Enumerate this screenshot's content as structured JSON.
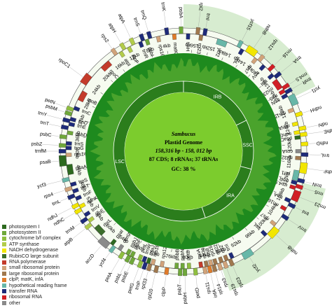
{
  "center": {
    "species": "Sambucus",
    "title": "Plastid Genome",
    "size": "158,316 bp - 158, 012 bp",
    "counts": "87 CDS; 8 rRNAs; 37 tRNAs",
    "gc": "GC: 38 %"
  },
  "regions": [
    {
      "label": "LSC",
      "start_kb": 0,
      "end_kb": 87
    },
    {
      "label": "IRA",
      "start_kb": 87,
      "end_kb": 112
    },
    {
      "label": "SSC",
      "start_kb": 112,
      "end_kb": 130
    },
    {
      "label": "IRB",
      "start_kb": 130,
      "end_kb": 158
    }
  ],
  "genome_length_kb": 158,
  "kb_ticks": [
    "4kb",
    "8kb",
    "12kb",
    "16kb",
    "20kb",
    "24kb",
    "28kb",
    "32kb",
    "36kb",
    "40kb",
    "44kb",
    "48kb",
    "52kb",
    "56kb",
    "60kb",
    "64kb",
    "68kb",
    "72kb",
    "76kb",
    "80kb",
    "84kb",
    "88kb",
    "92kb",
    "96kb",
    "100kb",
    "104kb",
    "108kb",
    "112kb",
    "116kb",
    "120kb",
    "124kb",
    "128kb",
    "132kb",
    "136kb",
    "140kb",
    "144kb",
    "148kb",
    "152kb",
    "156kb"
  ],
  "genes": [
    {
      "name": "psbA",
      "kb": 0.5,
      "cat": "photosystem II"
    },
    {
      "name": "matK",
      "kb": 2.0,
      "cat": "clpP, matK, infA"
    },
    {
      "name": "trnK",
      "kb": 3.5,
      "cat": "transfer RNA"
    },
    {
      "name": "rps16",
      "kb": 5.5,
      "cat": "small ribosomal protein"
    },
    {
      "name": "trnQ",
      "kb": 7.2,
      "cat": "transfer RNA"
    },
    {
      "name": "psbI",
      "kb": 8.0,
      "cat": "photosystem II"
    },
    {
      "name": "trnS",
      "kb": 8.8,
      "cat": "transfer RNA"
    },
    {
      "name": "trnR",
      "kb": 9.5,
      "cat": "transfer RNA"
    },
    {
      "name": "atpA",
      "kb": 11.0,
      "cat": "ATP synthase"
    },
    {
      "name": "atpF",
      "kb": 12.2,
      "cat": "ATP synthase"
    },
    {
      "name": "atpH",
      "kb": 13.2,
      "cat": "ATP synthase"
    },
    {
      "name": "atpI",
      "kb": 14.2,
      "cat": "ATP synthase"
    },
    {
      "name": "rps2",
      "kb": 15.3,
      "cat": "small ribosomal protein"
    },
    {
      "name": "rpoC2",
      "kb": 18.5,
      "cat": "RNA polymerase"
    },
    {
      "name": "rpoC1",
      "kb": 23.5,
      "cat": "RNA polymerase"
    },
    {
      "name": "rpoB",
      "kb": 27.0,
      "cat": "RNA polymerase"
    },
    {
      "name": "petN",
      "kb": 30.5,
      "cat": "cytochrome b/f complex"
    },
    {
      "name": "trnC",
      "kb": 30.0,
      "cat": "transfer RNA"
    },
    {
      "name": "psbM",
      "kb": 31.5,
      "cat": "photosystem II"
    },
    {
      "name": "trnD",
      "kb": 32.5,
      "cat": "transfer RNA"
    },
    {
      "name": "trnY",
      "kb": 33.0,
      "cat": "transfer RNA"
    },
    {
      "name": "trnE",
      "kb": 33.6,
      "cat": "transfer RNA"
    },
    {
      "name": "trnT",
      "kb": 34.5,
      "cat": "transfer RNA"
    },
    {
      "name": "psbD",
      "kb": 35.5,
      "cat": "photosystem II"
    },
    {
      "name": "psbC",
      "kb": 36.5,
      "cat": "photosystem II"
    },
    {
      "name": "trnS",
      "kb": 37.8,
      "cat": "transfer RNA"
    },
    {
      "name": "psbZ",
      "kb": 38.3,
      "cat": "photosystem II"
    },
    {
      "name": "trnG",
      "kb": 38.8,
      "cat": "transfer RNA"
    },
    {
      "name": "trnfM",
      "kb": 39.5,
      "cat": "transfer RNA"
    },
    {
      "name": "rps14",
      "kb": 40.3,
      "cat": "small ribosomal protein"
    },
    {
      "name": "psaB",
      "kb": 41.5,
      "cat": "photosystem I"
    },
    {
      "name": "psaA",
      "kb": 43.5,
      "cat": "photosystem I"
    },
    {
      "name": "ycf3",
      "kb": 45.5,
      "cat": "hypothetical reading frame"
    },
    {
      "name": "trnS",
      "kb": 46.8,
      "cat": "transfer RNA"
    },
    {
      "name": "rps4",
      "kb": 47.5,
      "cat": "small ribosomal protein"
    },
    {
      "name": "trnT",
      "kb": 48.3,
      "cat": "transfer RNA"
    },
    {
      "name": "trnL",
      "kb": 49.2,
      "cat": "transfer RNA"
    },
    {
      "name": "trnF",
      "kb": 50.0,
      "cat": "transfer RNA"
    },
    {
      "name": "ndhJ",
      "kb": 51.3,
      "cat": "NADH dehydrogenase"
    },
    {
      "name": "ndhK",
      "kb": 51.9,
      "cat": "NADH dehydrogenase"
    },
    {
      "name": "ndhC",
      "kb": 52.5,
      "cat": "NADH dehydrogenase"
    },
    {
      "name": "trnV",
      "kb": 54.0,
      "cat": "transfer RNA"
    },
    {
      "name": "trnM",
      "kb": 54.8,
      "cat": "transfer RNA"
    },
    {
      "name": "atpE",
      "kb": 55.5,
      "cat": "ATP synthase"
    },
    {
      "name": "atpB",
      "kb": 56.3,
      "cat": "ATP synthase"
    },
    {
      "name": "rbcL",
      "kb": 58.5,
      "cat": "RubisCO large subunit"
    },
    {
      "name": "accD",
      "kb": 61.0,
      "cat": "other"
    },
    {
      "name": "psaI",
      "kb": 62.5,
      "cat": "photosystem I"
    },
    {
      "name": "ycf4",
      "kb": 63.2,
      "cat": "hypothetical reading frame"
    },
    {
      "name": "cemA",
      "kb": 64.5,
      "cat": "other"
    },
    {
      "name": "petA",
      "kb": 65.5,
      "cat": "cytochrome b/f complex"
    },
    {
      "name": "psbJ",
      "kb": 66.5,
      "cat": "photosystem II"
    },
    {
      "name": "psbL",
      "kb": 67.0,
      "cat": "photosystem II"
    },
    {
      "name": "psbF",
      "kb": 67.5,
      "cat": "photosystem II"
    },
    {
      "name": "psbE",
      "kb": 68.0,
      "cat": "photosystem II"
    },
    {
      "name": "petL",
      "kb": 69.3,
      "cat": "cytochrome b/f complex"
    },
    {
      "name": "petG",
      "kb": 69.8,
      "cat": "cytochrome b/f complex"
    },
    {
      "name": "trnW",
      "kb": 70.3,
      "cat": "transfer RNA"
    },
    {
      "name": "trnP",
      "kb": 70.8,
      "cat": "transfer RNA"
    },
    {
      "name": "psaJ",
      "kb": 71.3,
      "cat": "photosystem I"
    },
    {
      "name": "rpl33",
      "kb": 71.8,
      "cat": "large ribosomal protein"
    },
    {
      "name": "rps18",
      "kb": 72.3,
      "cat": "small ribosomal protein"
    },
    {
      "name": "rpl20",
      "kb": 73.3,
      "cat": "large ribosomal protein"
    },
    {
      "name": "rps12",
      "kb": 74.3,
      "cat": "small ribosomal protein"
    },
    {
      "name": "clpP",
      "kb": 75.5,
      "cat": "clpP, matK, infA"
    },
    {
      "name": "psbB",
      "kb": 77.5,
      "cat": "photosystem II"
    },
    {
      "name": "psbT",
      "kb": 78.3,
      "cat": "photosystem II"
    },
    {
      "name": "psbN",
      "kb": 78.8,
      "cat": "photosystem II"
    },
    {
      "name": "psbH",
      "kb": 79.3,
      "cat": "photosystem II"
    },
    {
      "name": "petB",
      "kb": 80.2,
      "cat": "cytochrome b/f complex"
    },
    {
      "name": "petD",
      "kb": 81.5,
      "cat": "cytochrome b/f complex"
    },
    {
      "name": "rpoA",
      "kb": 82.8,
      "cat": "RNA polymerase"
    },
    {
      "name": "rps11",
      "kb": 83.5,
      "cat": "small ribosomal protein"
    },
    {
      "name": "rpl36",
      "kb": 84.0,
      "cat": "large ribosomal protein"
    },
    {
      "name": "infA",
      "kb": 84.5,
      "cat": "clpP, matK, infA"
    },
    {
      "name": "rps8",
      "kb": 85.0,
      "cat": "small ribosomal protein"
    },
    {
      "name": "rpl14",
      "kb": 85.5,
      "cat": "large ribosomal protein"
    },
    {
      "name": "rpl16",
      "kb": 86.0,
      "cat": "large ribosomal protein"
    },
    {
      "name": "rps3",
      "kb": 86.7,
      "cat": "small ribosomal protein"
    },
    {
      "name": "rpl22",
      "kb": 87.3,
      "cat": "large ribosomal protein"
    },
    {
      "name": "rps19",
      "kb": 87.9,
      "cat": "small ribosomal protein"
    },
    {
      "name": "rpl2",
      "kb": 88.5,
      "cat": "large ribosomal protein"
    },
    {
      "name": "rpl23",
      "kb": 89.2,
      "cat": "large ribosomal protein"
    },
    {
      "name": "trnI",
      "kb": 89.8,
      "cat": "transfer RNA"
    },
    {
      "name": "ycf2",
      "kb": 93.0,
      "cat": "hypothetical reading frame"
    },
    {
      "name": "trnL",
      "kb": 98.5,
      "cat": "transfer RNA"
    },
    {
      "name": "ndhB",
      "kb": 100.0,
      "cat": "NADH dehydrogenase"
    },
    {
      "name": "rps7",
      "kb": 101.5,
      "cat": "small ribosomal protein"
    },
    {
      "name": "trnV",
      "kb": 104.0,
      "cat": "transfer RNA"
    },
    {
      "name": "rrn16",
      "kb": 105.5,
      "cat": "ribosomal RNA"
    },
    {
      "name": "trnI",
      "kb": 106.8,
      "cat": "transfer RNA"
    },
    {
      "name": "trnA",
      "kb": 107.5,
      "cat": "transfer RNA"
    },
    {
      "name": "rrn23",
      "kb": 109.0,
      "cat": "ribosomal RNA"
    },
    {
      "name": "rrn4.5",
      "kb": 110.5,
      "cat": "ribosomal RNA"
    },
    {
      "name": "rrn5",
      "kb": 111.0,
      "cat": "ribosomal RNA"
    },
    {
      "name": "trnR",
      "kb": 111.6,
      "cat": "transfer RNA"
    },
    {
      "name": "trnN",
      "kb": 112.3,
      "cat": "transfer RNA"
    },
    {
      "name": "ycf1",
      "kb": 113.2,
      "cat": "hypothetical reading frame"
    },
    {
      "name": "ndhF",
      "kb": 115.0,
      "cat": "NADH dehydrogenase"
    },
    {
      "name": "rpl32",
      "kb": 117.0,
      "cat": "large ribosomal protein"
    },
    {
      "name": "trnL",
      "kb": 117.8,
      "cat": "transfer RNA"
    },
    {
      "name": "ccsA",
      "kb": 118.5,
      "cat": "other"
    },
    {
      "name": "ndhD",
      "kb": 120.0,
      "cat": "NADH dehydrogenase"
    },
    {
      "name": "psaC",
      "kb": 121.5,
      "cat": "photosystem I"
    },
    {
      "name": "ndhE",
      "kb": 122.0,
      "cat": "NADH dehydrogenase"
    },
    {
      "name": "ndhG",
      "kb": 122.6,
      "cat": "NADH dehydrogenase"
    },
    {
      "name": "ndhI",
      "kb": 123.3,
      "cat": "NADH dehydrogenase"
    },
    {
      "name": "ndhA",
      "kb": 124.5,
      "cat": "NADH dehydrogenase"
    },
    {
      "name": "ndhH",
      "kb": 126.3,
      "cat": "NADH dehydrogenase"
    },
    {
      "name": "rps15",
      "kb": 127.6,
      "cat": "small ribosomal protein"
    },
    {
      "name": "ycf1",
      "kb": 129.5,
      "cat": "hypothetical reading frame"
    },
    {
      "name": "trnN",
      "kb": 131.0,
      "cat": "transfer RNA"
    },
    {
      "name": "trnR",
      "kb": 131.6,
      "cat": "transfer RNA"
    },
    {
      "name": "rrn5",
      "kb": 132.1,
      "cat": "ribosomal RNA"
    },
    {
      "name": "rrn4.5",
      "kb": 132.7,
      "cat": "ribosomal RNA"
    },
    {
      "name": "rrn23",
      "kb": 134.0,
      "cat": "ribosomal RNA"
    },
    {
      "name": "trnA",
      "kb": 135.6,
      "cat": "transfer RNA"
    },
    {
      "name": "trnI",
      "kb": 136.3,
      "cat": "transfer RNA"
    },
    {
      "name": "rrn16",
      "kb": 137.6,
      "cat": "ribosomal RNA"
    },
    {
      "name": "trnV",
      "kb": 139.0,
      "cat": "transfer RNA"
    },
    {
      "name": "rps12",
      "kb": 140.5,
      "cat": "small ribosomal protein"
    },
    {
      "name": "rps7",
      "kb": 141.3,
      "cat": "small ribosomal protein"
    },
    {
      "name": "ndhB",
      "kb": 143.0,
      "cat": "NADH dehydrogenase"
    },
    {
      "name": "trnL",
      "kb": 144.8,
      "cat": "transfer RNA"
    },
    {
      "name": "ycf15",
      "kb": 145.8,
      "cat": "hypothetical reading frame"
    },
    {
      "name": "ycf2",
      "kb": 149.5,
      "cat": "hypothetical reading frame"
    },
    {
      "name": "trnI",
      "kb": 153.5,
      "cat": "transfer RNA"
    },
    {
      "name": "rpl23",
      "kb": 154.2,
      "cat": "large ribosomal protein"
    },
    {
      "name": "rpl2",
      "kb": 155.0,
      "cat": "large ribosomal protein"
    },
    {
      "name": "trnH",
      "kb": 157.0,
      "cat": "transfer RNA"
    }
  ],
  "legend": [
    {
      "label": "photosystem I",
      "color": "#2d6a1f"
    },
    {
      "label": "photosystem II",
      "color": "#6fa83a"
    },
    {
      "label": "cytochrome b/f complex",
      "color": "#8fbf3f"
    },
    {
      "label": "ATP synthase",
      "color": "#b2cc4a"
    },
    {
      "label": "NADH dehydrogenase",
      "color": "#f2e600"
    },
    {
      "label": "RubisCO large subunit",
      "color": "#3b6e2a"
    },
    {
      "label": "RNA polymerase",
      "color": "#c43b2b"
    },
    {
      "label": "small ribosomal protein",
      "color": "#d1a37a"
    },
    {
      "label": "large ribosomal protein",
      "color": "#a0784e"
    },
    {
      "label": "clpP, matK, infA",
      "color": "#e07b2a"
    },
    {
      "label": "hypothetical reading frame",
      "color": "#67b7a8"
    },
    {
      "label": "transfer RNA",
      "color": "#1e2b7a"
    },
    {
      "label": "ribosomal RNA",
      "color": "#d11f26"
    },
    {
      "label": "other",
      "color": "#8a8a8a"
    }
  ],
  "colors": {
    "ring_bg": "#f6fbf0",
    "ir_shade": "#d7ecd0",
    "gc_dark": "#1e8a1e",
    "gc_light": "#4aa32c",
    "center_fill": "#7ccc2d",
    "quadrant_ring": "#2b7d1c",
    "stroke": "#555555"
  }
}
